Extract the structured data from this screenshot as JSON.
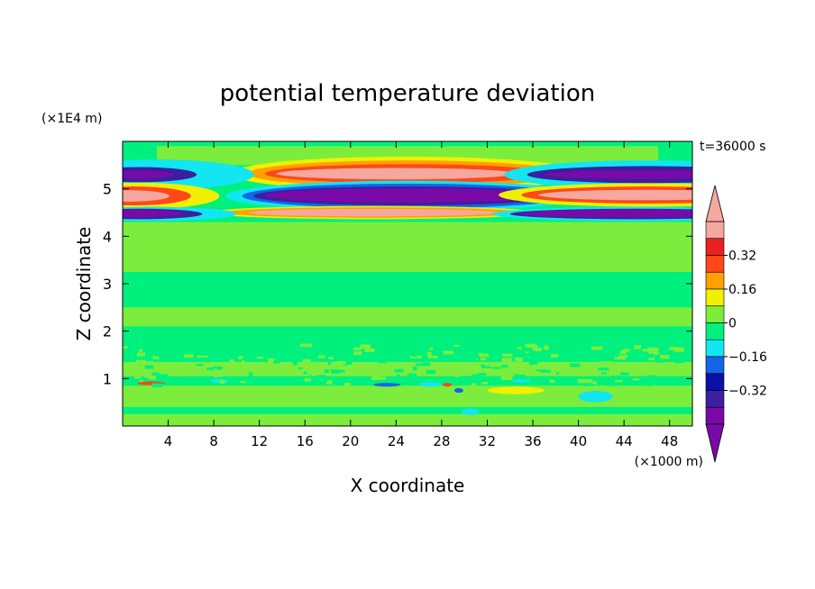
{
  "chart_data": {
    "type": "heatmap",
    "title": "potential temperature deviation",
    "xlabel": "X coordinate",
    "ylabel": "Z coordinate",
    "x_unit": "(×1000 m)",
    "y_unit": "(×1E4 m)",
    "time_label": "t=36000 s",
    "xlim": [
      0,
      50
    ],
    "ylim": [
      0,
      6
    ],
    "x_ticks": [
      4,
      8,
      12,
      16,
      20,
      24,
      28,
      32,
      36,
      40,
      44,
      48
    ],
    "y_ticks": [
      1,
      2,
      3,
      4,
      5
    ],
    "colorbar": {
      "levels": [
        -0.4,
        -0.32,
        -0.24,
        -0.16,
        -0.08,
        0,
        0.08,
        0.16,
        0.24,
        0.32,
        0.4
      ],
      "labels": [
        {
          "value": 0.32,
          "text": "0.32"
        },
        {
          "value": 0.16,
          "text": "0.16"
        },
        {
          "value": 0,
          "text": "0"
        },
        {
          "value": -0.16,
          "text": "−0.16"
        },
        {
          "value": -0.32,
          "text": "−0.32"
        }
      ],
      "colors": [
        "#7a0aa8",
        "#3c1fa0",
        "#0a10a8",
        "#1466e6",
        "#12e6f0",
        "#00f07e",
        "#7ced3c",
        "#f0f000",
        "#ffa000",
        "#ff4818",
        "#ec2020",
        "#f5a8a0"
      ],
      "under_color": "#7a0aa8",
      "over_color": "#f5a8a0"
    },
    "background_color": "#00f07e",
    "fields": [
      {
        "kind": "band",
        "color": "#7ced3c",
        "x": [
          0,
          50
        ],
        "y": [
          3.25,
          4.3
        ]
      },
      {
        "kind": "band",
        "color": "#7ced3c",
        "x": [
          0,
          50
        ],
        "y": [
          2.1,
          2.5
        ]
      },
      {
        "kind": "band",
        "color": "#7ced3c",
        "x": [
          0,
          50
        ],
        "y": [
          0.4,
          0.85
        ]
      },
      {
        "kind": "band",
        "color": "#7ced3c",
        "x": [
          0,
          50
        ],
        "y": [
          0,
          0.25
        ]
      },
      {
        "kind": "band",
        "color": "#7ced3c",
        "x": [
          3,
          47
        ],
        "y": [
          5.5,
          5.9
        ]
      },
      {
        "kind": "band",
        "color": "#7ced3c",
        "x": [
          0,
          50
        ],
        "y": [
          1.05,
          1.35
        ]
      },
      {
        "kind": "blob",
        "color": "#f0f000",
        "cx": 25,
        "cy": 5.32,
        "rx": 15.5,
        "ry": 0.36
      },
      {
        "kind": "blob",
        "color": "#ffa000",
        "cx": 25,
        "cy": 5.32,
        "rx": 14.0,
        "ry": 0.28
      },
      {
        "kind": "blob",
        "color": "#ff4818",
        "cx": 25,
        "cy": 5.32,
        "rx": 12.5,
        "ry": 0.2
      },
      {
        "kind": "blob",
        "color": "#f5a8a0",
        "cx": 24,
        "cy": 5.32,
        "rx": 10.5,
        "ry": 0.12
      },
      {
        "kind": "blob",
        "color": "#12e6f0",
        "cx": 25,
        "cy": 4.85,
        "rx": 16.0,
        "ry": 0.32
      },
      {
        "kind": "blob",
        "color": "#1466e6",
        "cx": 25,
        "cy": 4.85,
        "rx": 14.5,
        "ry": 0.26
      },
      {
        "kind": "blob",
        "color": "#3c1fa0",
        "cx": 25,
        "cy": 4.85,
        "rx": 13.5,
        "ry": 0.2
      },
      {
        "kind": "blob",
        "color": "#7a0aa8",
        "cx": 25,
        "cy": 4.86,
        "rx": 12.5,
        "ry": 0.15
      },
      {
        "kind": "blob",
        "color": "#f0f000",
        "cx": 22,
        "cy": 4.5,
        "rx": 14.5,
        "ry": 0.14
      },
      {
        "kind": "blob",
        "color": "#ffa000",
        "cx": 22,
        "cy": 4.5,
        "rx": 13.0,
        "ry": 0.11
      },
      {
        "kind": "blob",
        "color": "#f5a8a0",
        "cx": 22,
        "cy": 4.5,
        "rx": 11.0,
        "ry": 0.08
      },
      {
        "kind": "blob",
        "color": "#12e6f0",
        "cx": 3,
        "cy": 5.3,
        "rx": 8.5,
        "ry": 0.32
      },
      {
        "kind": "blob",
        "color": "#3c1fa0",
        "cx": 1.5,
        "cy": 5.3,
        "rx": 5.0,
        "ry": 0.16
      },
      {
        "kind": "blob",
        "color": "#7a0aa8",
        "cx": 1.0,
        "cy": 5.3,
        "rx": 3.5,
        "ry": 0.08
      },
      {
        "kind": "blob",
        "color": "#12e6f0",
        "cx": 46,
        "cy": 5.3,
        "rx": 12.5,
        "ry": 0.3
      },
      {
        "kind": "blob",
        "color": "#3c1fa0",
        "cx": 46,
        "cy": 5.3,
        "rx": 10.5,
        "ry": 0.18
      },
      {
        "kind": "blob",
        "color": "#7a0aa8",
        "cx": 46,
        "cy": 5.3,
        "rx": 9.0,
        "ry": 0.09
      },
      {
        "kind": "blob",
        "color": "#f0f000",
        "cx": 1.5,
        "cy": 4.85,
        "rx": 7.0,
        "ry": 0.28
      },
      {
        "kind": "blob",
        "color": "#ff4818",
        "cx": 1.0,
        "cy": 4.85,
        "rx": 5.0,
        "ry": 0.2
      },
      {
        "kind": "blob",
        "color": "#f5a8a0",
        "cx": 0.5,
        "cy": 4.85,
        "rx": 3.6,
        "ry": 0.12
      },
      {
        "kind": "blob",
        "color": "#f0f000",
        "cx": 46,
        "cy": 4.87,
        "rx": 13.0,
        "ry": 0.25
      },
      {
        "kind": "blob",
        "color": "#ff4818",
        "cx": 46,
        "cy": 4.87,
        "rx": 11.0,
        "ry": 0.18
      },
      {
        "kind": "blob",
        "color": "#f5a8a0",
        "cx": 46,
        "cy": 4.87,
        "rx": 9.5,
        "ry": 0.11
      },
      {
        "kind": "blob",
        "color": "#12e6f0",
        "cx": 2.5,
        "cy": 4.47,
        "rx": 7.5,
        "ry": 0.15
      },
      {
        "kind": "blob",
        "color": "#3c1fa0",
        "cx": 1.5,
        "cy": 4.47,
        "rx": 5.5,
        "ry": 0.11
      },
      {
        "kind": "blob",
        "color": "#7a0aa8",
        "cx": 1.0,
        "cy": 4.48,
        "rx": 4.2,
        "ry": 0.08
      },
      {
        "kind": "blob",
        "color": "#12e6f0",
        "cx": 45,
        "cy": 4.47,
        "rx": 12.5,
        "ry": 0.15
      },
      {
        "kind": "blob",
        "color": "#3c1fa0",
        "cx": 45,
        "cy": 4.47,
        "rx": 11.0,
        "ry": 0.11
      },
      {
        "kind": "blob",
        "color": "#7a0aa8",
        "cx": 45,
        "cy": 4.48,
        "rx": 10.0,
        "ry": 0.08
      },
      {
        "kind": "blob",
        "color": "#f0f000",
        "cx": 34.5,
        "cy": 0.75,
        "rx": 2.5,
        "ry": 0.08
      },
      {
        "kind": "blob",
        "color": "#12e6f0",
        "cx": 41.5,
        "cy": 0.62,
        "rx": 1.5,
        "ry": 0.12
      },
      {
        "kind": "blob",
        "color": "#12e6f0",
        "cx": 27,
        "cy": 0.88,
        "rx": 1.0,
        "ry": 0.05
      },
      {
        "kind": "blob",
        "color": "#1466e6",
        "cx": 23.2,
        "cy": 0.87,
        "rx": 1.2,
        "ry": 0.04
      },
      {
        "kind": "blob",
        "color": "#ff4818",
        "cx": 2.5,
        "cy": 0.9,
        "rx": 1.2,
        "ry": 0.04
      },
      {
        "kind": "blob",
        "color": "#ff4818",
        "cx": 28.5,
        "cy": 0.87,
        "rx": 0.4,
        "ry": 0.04
      },
      {
        "kind": "blob",
        "color": "#1466e6",
        "cx": 29.5,
        "cy": 0.75,
        "rx": 0.4,
        "ry": 0.05
      },
      {
        "kind": "blob",
        "color": "#12e6f0",
        "cx": 30.5,
        "cy": 0.3,
        "rx": 0.8,
        "ry": 0.07
      },
      {
        "kind": "blob",
        "color": "#12e6f0",
        "cx": 8.5,
        "cy": 0.95,
        "rx": 0.8,
        "ry": 0.04
      },
      {
        "kind": "blob",
        "color": "#12e6f0",
        "cx": 35,
        "cy": 0.95,
        "rx": 0.8,
        "ry": 0.04
      }
    ]
  }
}
